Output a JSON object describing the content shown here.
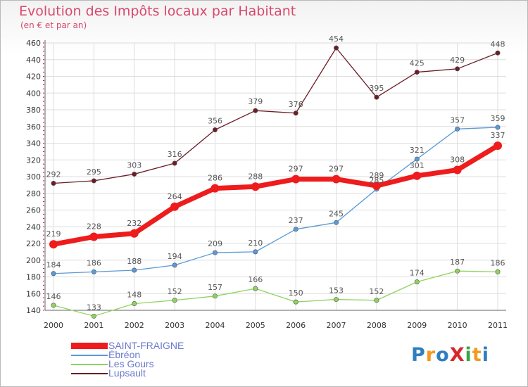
{
  "title": "Evolution des Impôts locaux par Habitant",
  "subtitle": "(en € et par an)",
  "logo": {
    "text": "ProXiti",
    "colors": [
      "#2f7fc0",
      "#f39a1c",
      "#2f7fc0",
      "#d8272a",
      "#3aa545",
      "#f39a1c",
      "#2f7fc0"
    ]
  },
  "chart_data": {
    "type": "line",
    "x": [
      "2000",
      "2001",
      "2002",
      "2003",
      "2004",
      "2005",
      "2006",
      "2007",
      "2008",
      "2009",
      "2010",
      "2011"
    ],
    "ylim": [
      140,
      460
    ],
    "yticks": [
      140,
      160,
      180,
      200,
      220,
      240,
      260,
      280,
      300,
      320,
      340,
      360,
      380,
      400,
      420,
      440,
      460
    ],
    "grid": true,
    "legend_position": "bottom-left",
    "series": [
      {
        "name": "Lupsault",
        "color": "#6b1e25",
        "values": [
          292,
          295,
          303,
          316,
          356,
          379,
          376,
          454,
          395,
          425,
          429,
          448
        ]
      },
      {
        "name": "Les Gours",
        "color": "#8fd35e",
        "values": [
          146,
          133,
          148,
          152,
          157,
          166,
          150,
          153,
          152,
          174,
          187,
          186
        ]
      },
      {
        "name": "Ébréon",
        "color": "#5b9ad5",
        "values": [
          184,
          186,
          188,
          194,
          209,
          210,
          237,
          245,
          285,
          321,
          357,
          359
        ]
      },
      {
        "name": "SAINT-FRAIGNE",
        "color": "#ee1c1c",
        "values": [
          219,
          228,
          232,
          264,
          286,
          288,
          297,
          297,
          289,
          301,
          308,
          337
        ]
      }
    ],
    "legend": [
      "SAINT-FRAIGNE",
      "Ébréon",
      "Les Gours",
      "Lupsault"
    ]
  }
}
